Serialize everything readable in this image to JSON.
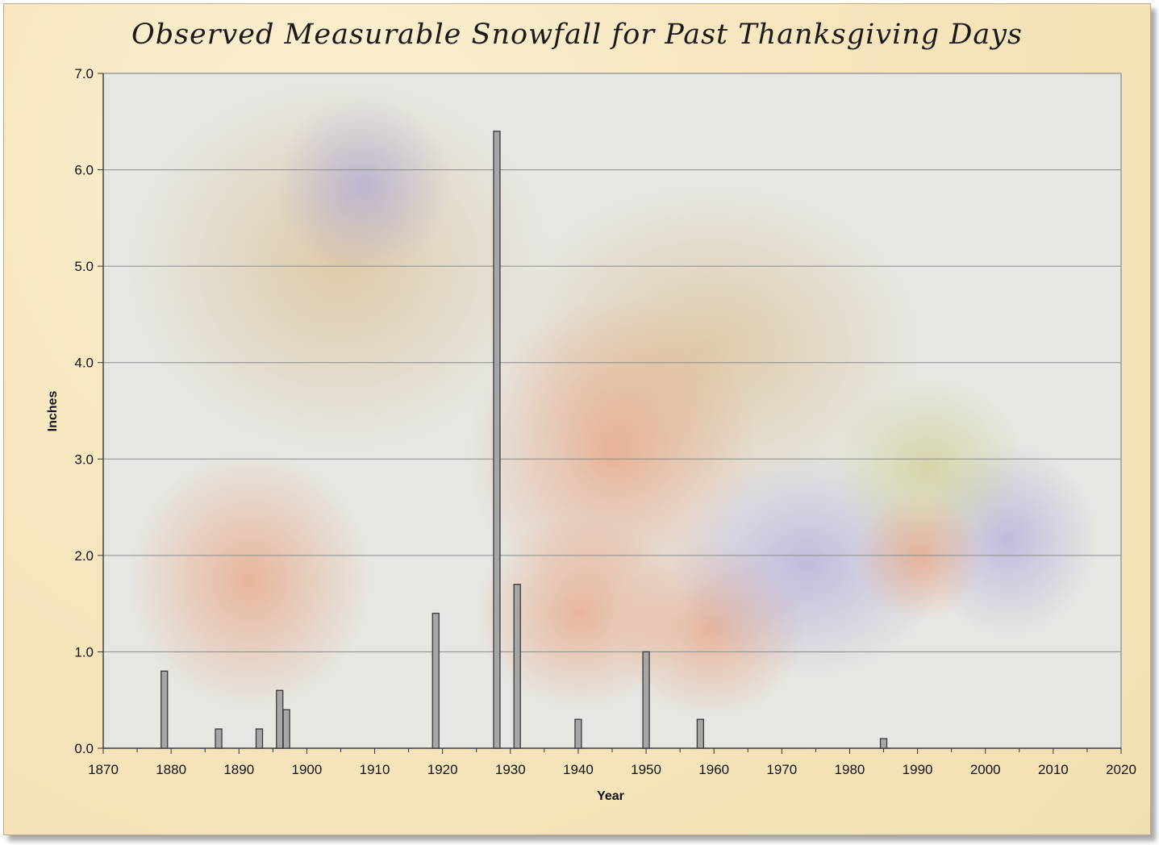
{
  "chart_data": {
    "type": "bar",
    "title": "Observed Measurable Snowfall for Past Thanksgiving Days",
    "xlabel": "Year",
    "ylabel": "Inches",
    "xlim": [
      1870,
      2020
    ],
    "ylim": [
      0,
      7
    ],
    "x_ticks": [
      1870,
      1880,
      1890,
      1900,
      1910,
      1920,
      1930,
      1940,
      1950,
      1960,
      1970,
      1980,
      1990,
      2000,
      2010,
      2020
    ],
    "y_ticks": [
      "0.0",
      "1.0",
      "2.0",
      "3.0",
      "4.0",
      "5.0",
      "6.0",
      "7.0"
    ],
    "grid": true,
    "legend": "none",
    "bar_color": "#a6a6a6",
    "series": [
      {
        "x": [
          1879,
          1887,
          1893,
          1896,
          1897,
          1919,
          1928,
          1931,
          1940,
          1950,
          1958,
          1985
        ],
        "values": [
          0.8,
          0.2,
          0.2,
          0.6,
          0.4,
          1.4,
          6.4,
          1.7,
          0.3,
          1.0,
          0.3,
          0.1
        ]
      }
    ]
  }
}
